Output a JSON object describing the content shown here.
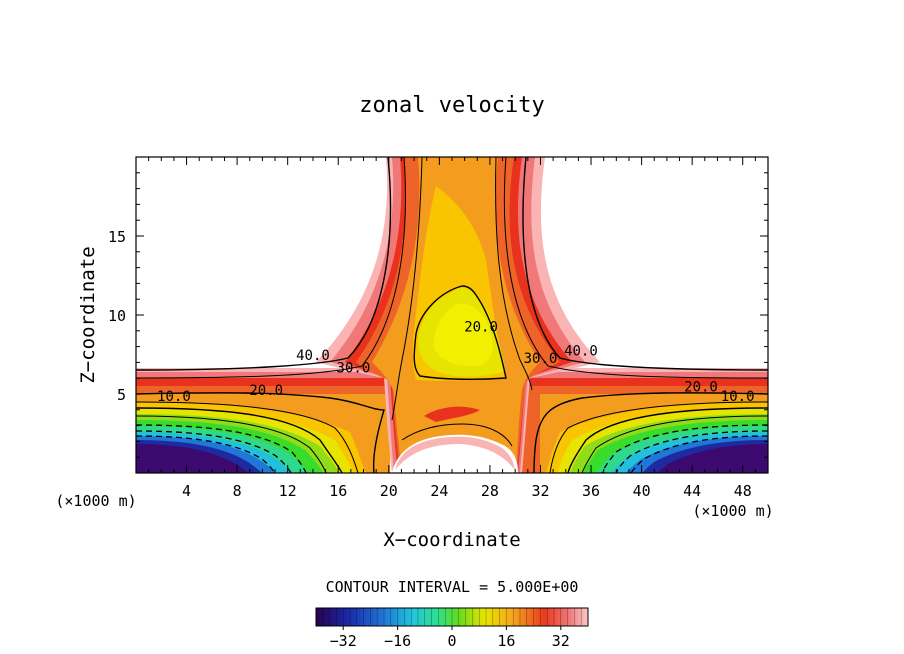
{
  "chart_data": {
    "type": "contour",
    "title": "zonal velocity",
    "xlabel": "X−coordinate",
    "ylabel": "Z−coordinate",
    "x_unit_left": "(×1000 m)",
    "x_unit_right": "(×1000 m)",
    "xlim": [
      0,
      50
    ],
    "ylim": [
      0,
      20
    ],
    "x_ticks": [
      4,
      8,
      12,
      16,
      20,
      24,
      28,
      32,
      36,
      40,
      44,
      48
    ],
    "x_tick_labels": [
      "4",
      "8",
      "12",
      "16",
      "20",
      "24",
      "28",
      "32",
      "36",
      "40",
      "44",
      "48"
    ],
    "y_ticks": [
      5,
      10,
      15
    ],
    "y_tick_labels": [
      "5",
      "10",
      "15"
    ],
    "contour_interval_text": "CONTOUR INTERVAL = 5.000E+00",
    "contour_interval": 5,
    "contour_labels": [
      {
        "text": "40.0",
        "x": 14.0,
        "y": 7.4
      },
      {
        "text": "30.0",
        "x": 17.2,
        "y": 6.6
      },
      {
        "text": "20.0",
        "x": 10.3,
        "y": 5.2
      },
      {
        "text": "10.0",
        "x": 3.0,
        "y": 4.8
      },
      {
        "text": "20.0",
        "x": 27.3,
        "y": 9.2
      },
      {
        "text": "30.0",
        "x": 32.0,
        "y": 7.2
      },
      {
        "text": "40.0",
        "x": 35.2,
        "y": 7.7
      },
      {
        "text": "20.0",
        "x": 44.7,
        "y": 5.4
      },
      {
        "text": "10.0",
        "x": 47.6,
        "y": 4.8
      }
    ],
    "colorbar": {
      "range": [
        -40,
        40
      ],
      "tick_values": [
        -32,
        -16,
        0,
        16,
        32
      ],
      "tick_labels": [
        "−32",
        "−16",
        "0",
        "16",
        "32"
      ]
    },
    "palette": [
      "#3c0a6e",
      "#1e2aa0",
      "#1f78d8",
      "#22c0dc",
      "#2ed88c",
      "#3adc2c",
      "#b4e01e",
      "#f2e600",
      "#f9c400",
      "#f49c1e",
      "#ee6428",
      "#e8321e",
      "#f07878",
      "#fab4b4"
    ]
  }
}
